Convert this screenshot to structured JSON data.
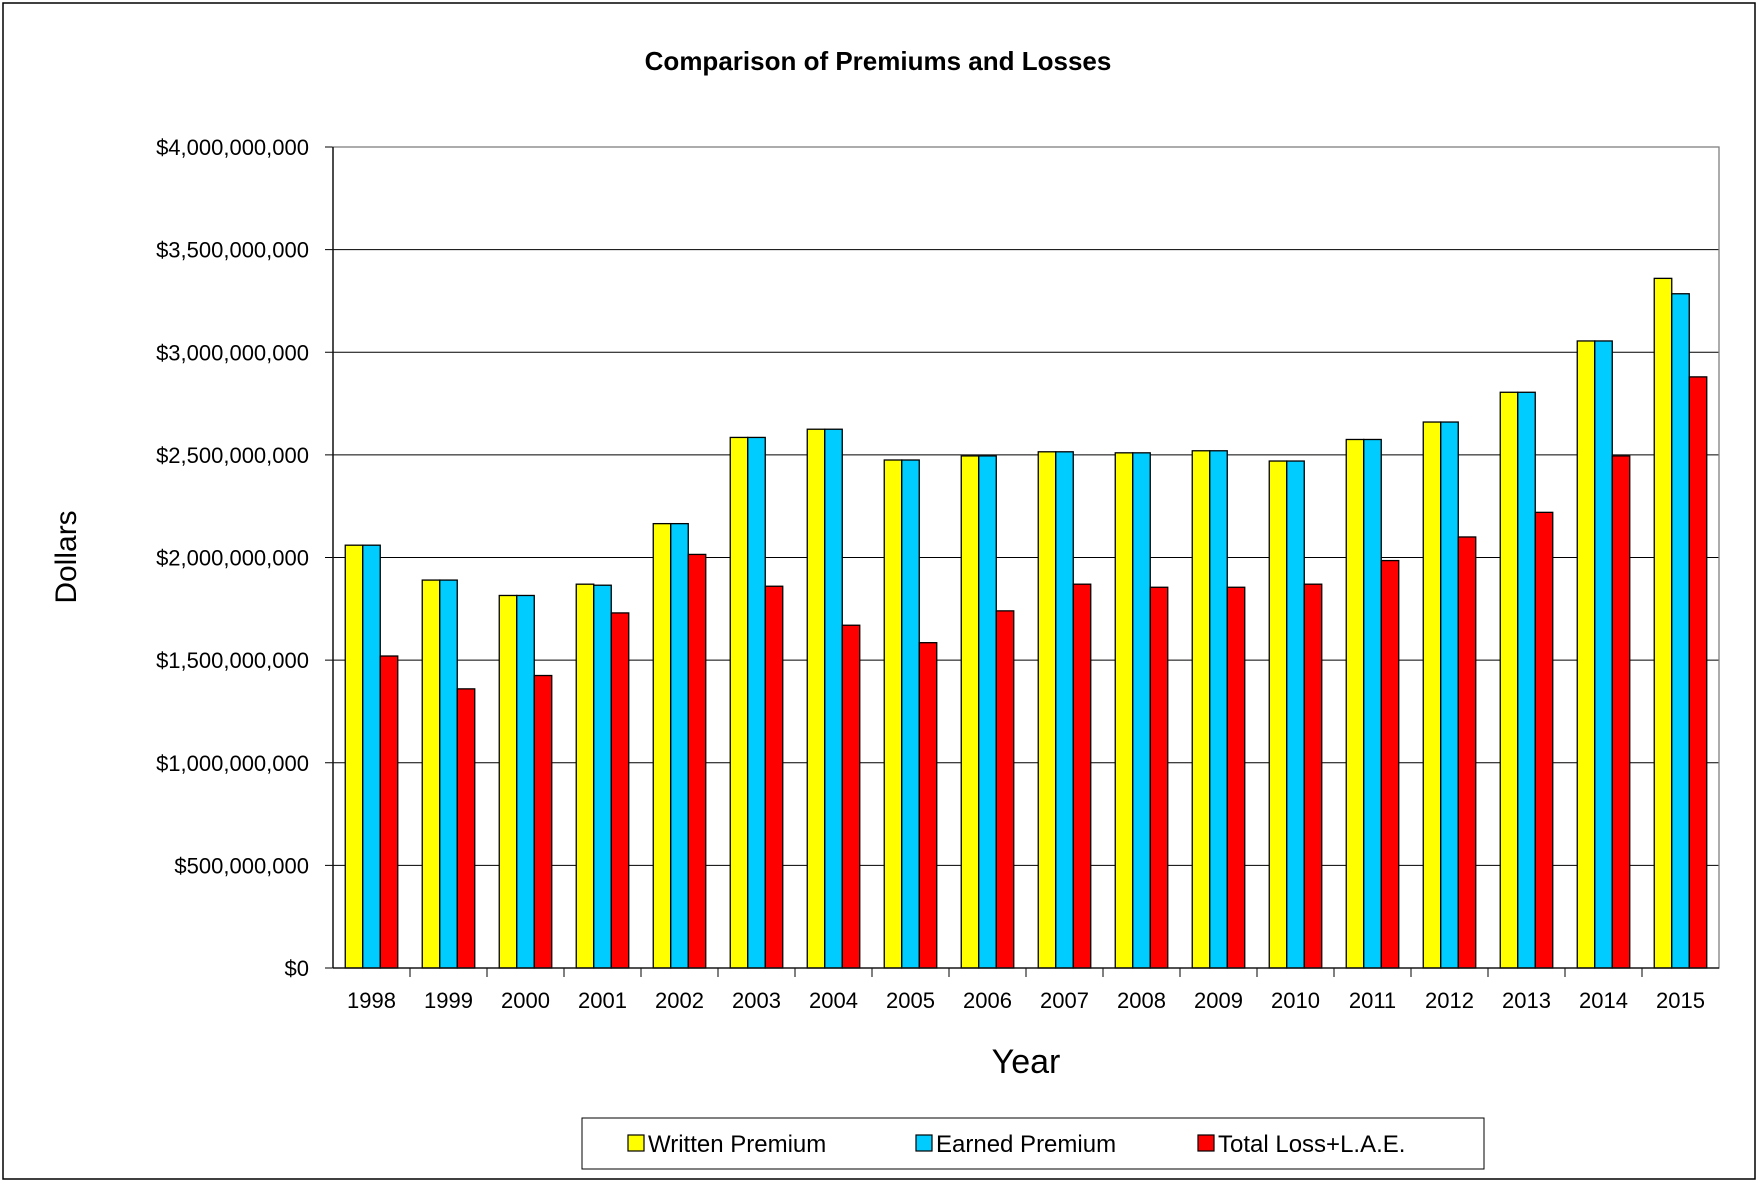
{
  "chart_data": {
    "type": "bar",
    "title": "Comparison of Premiums and Losses",
    "xlabel": "Year",
    "ylabel": "Dollars",
    "ylim": [
      0,
      4000000000
    ],
    "yticks": [
      0,
      500000000,
      1000000000,
      1500000000,
      2000000000,
      2500000000,
      3000000000,
      3500000000,
      4000000000
    ],
    "ytick_labels": [
      "$0",
      "$500,000,000",
      "$1,000,000,000",
      "$1,500,000,000",
      "$2,000,000,000",
      "$2,500,000,000",
      "$3,000,000,000",
      "$3,500,000,000",
      "$4,000,000,000"
    ],
    "grid": true,
    "legend_position": "bottom",
    "categories": [
      "1998",
      "1999",
      "2000",
      "2001",
      "2002",
      "2003",
      "2004",
      "2005",
      "2006",
      "2007",
      "2008",
      "2009",
      "2010",
      "2011",
      "2012",
      "2013",
      "2014",
      "2015"
    ],
    "series": [
      {
        "name": "Written Premium",
        "color": "#ffff00",
        "values": [
          2060000000,
          1890000000,
          1815000000,
          1870000000,
          2165000000,
          2585000000,
          2625000000,
          2475000000,
          2495000000,
          2515000000,
          2510000000,
          2520000000,
          2470000000,
          2575000000,
          2660000000,
          2805000000,
          3055000000,
          3360000000
        ]
      },
      {
        "name": "Earned Premium",
        "color": "#00ccff",
        "values": [
          2060000000,
          1890000000,
          1815000000,
          1865000000,
          2165000000,
          2585000000,
          2625000000,
          2475000000,
          2495000000,
          2515000000,
          2510000000,
          2520000000,
          2470000000,
          2575000000,
          2660000000,
          2805000000,
          3055000000,
          3285000000
        ]
      },
      {
        "name": "Total Loss+L.A.E.",
        "color": "#ff0000",
        "values": [
          1520000000,
          1360000000,
          1425000000,
          1730000000,
          2015000000,
          1860000000,
          1670000000,
          1585000000,
          1740000000,
          1870000000,
          1855000000,
          1855000000,
          1870000000,
          1985000000,
          2100000000,
          2220000000,
          2495000000,
          2880000000
        ]
      }
    ]
  }
}
